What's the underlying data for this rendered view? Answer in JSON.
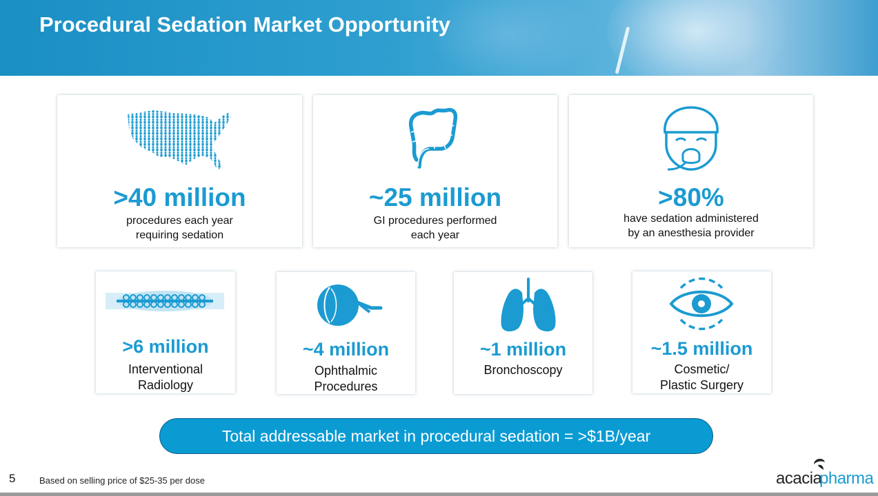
{
  "header": {
    "title": "Procedural Sedation Market Opportunity"
  },
  "top_cards": [
    {
      "value": ">40 million",
      "line1": "procedures each year",
      "line2": "requiring sedation",
      "icon": "usa-map-people-icon"
    },
    {
      "value": "~25 million",
      "line1": "GI procedures performed",
      "line2": "each year",
      "icon": "colon-icon"
    },
    {
      "value": ">80%",
      "line1": "have sedation administered",
      "line2": "by an anesthesia provider",
      "icon": "patient-mask-icon"
    }
  ],
  "bottom_cards": [
    {
      "value": ">6 million",
      "line1": "Interventional",
      "line2": "Radiology",
      "icon": "stent-icon"
    },
    {
      "value": "~4 million",
      "line1": "Ophthalmic",
      "line2": "Procedures",
      "icon": "eyeball-icon"
    },
    {
      "value": "~1 million",
      "line1": "Bronchoscopy",
      "line2": "",
      "icon": "lungs-icon"
    },
    {
      "value": "~1.5 million",
      "line1": "Cosmetic/",
      "line2": "Plastic Surgery",
      "icon": "eye-icon"
    }
  ],
  "summary": {
    "text": "Total addressable market in procedural sedation = >$1B/year"
  },
  "footer": {
    "page_number": "5",
    "footnote": "Based on selling price of $25-35 per dose",
    "logo_part1": "acacia",
    "logo_part2": "pharma"
  },
  "colors": {
    "accent": "#1b9bd1",
    "pill": "#0a9bd3"
  }
}
